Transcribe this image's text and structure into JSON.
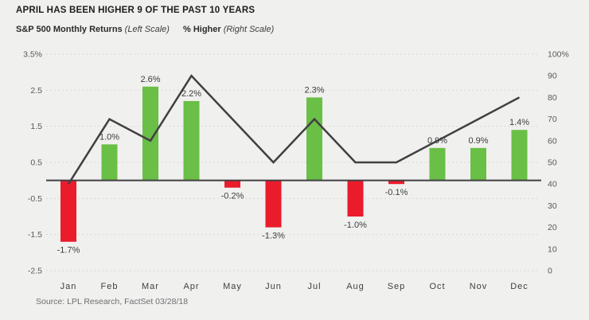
{
  "title": "APRIL HAS BEEN HIGHER 9 OF THE PAST 10 YEARS",
  "legend": {
    "left": {
      "label": "S&P 500 Monthly Returns",
      "note": "(Left Scale)"
    },
    "right": {
      "label": "% Higher",
      "note": "(Right Scale)"
    }
  },
  "source": "Source: LPL Research, FactSet 03/28/18",
  "colors": {
    "background": "#f0f0ee",
    "positive_bar": "#6abf47",
    "negative_bar": "#ea1c2c",
    "line": "#414042",
    "grid": "#d8d8d4",
    "zero_axis": "#414042",
    "tick_text": "#58595b",
    "label_text": "#3d3d3f",
    "month_text": "#414042"
  },
  "chart_data": {
    "type": "bar",
    "categories": [
      "Jan",
      "Feb",
      "Mar",
      "Apr",
      "May",
      "Jun",
      "Jul",
      "Aug",
      "Sep",
      "Oct",
      "Nov",
      "Dec"
    ],
    "series": [
      {
        "name": "S&P 500 Monthly Returns",
        "type": "bar",
        "axis": "left",
        "values": [
          -1.7,
          1.0,
          2.6,
          2.2,
          -0.2,
          -1.3,
          2.3,
          -1.0,
          -0.1,
          0.9,
          0.9,
          1.4
        ],
        "labels": [
          "-1.7%",
          "1.0%",
          "2.6%",
          "2.2%",
          "-0.2%",
          "-1.3%",
          "2.3%",
          "-1.0%",
          "-0.1%",
          "0.9%",
          "0.9%",
          "1.4%"
        ]
      },
      {
        "name": "% Higher",
        "type": "line",
        "axis": "right",
        "values": [
          40,
          70,
          60,
          90,
          70,
          50,
          70,
          50,
          50,
          60,
          70,
          80
        ]
      }
    ],
    "left_axis": {
      "min": -2.5,
      "max": 3.5,
      "ticks": [
        3.5,
        2.5,
        1.5,
        0.5,
        -0.5,
        -1.5,
        -2.5
      ],
      "tick_labels": [
        "3.5%",
        "2.5",
        "1.5",
        "0.5",
        "-0.5",
        "-1.5",
        "-2.5"
      ]
    },
    "right_axis": {
      "min": 0,
      "max": 100,
      "ticks": [
        100,
        90,
        80,
        70,
        60,
        50,
        40,
        30,
        20,
        10,
        0
      ],
      "tick_labels": [
        "100%",
        "90",
        "80",
        "70",
        "60",
        "50",
        "40",
        "30",
        "20",
        "10",
        "0"
      ]
    },
    "grid": "dashed horizontal at left-axis ticks",
    "legend_position": "top-left"
  }
}
